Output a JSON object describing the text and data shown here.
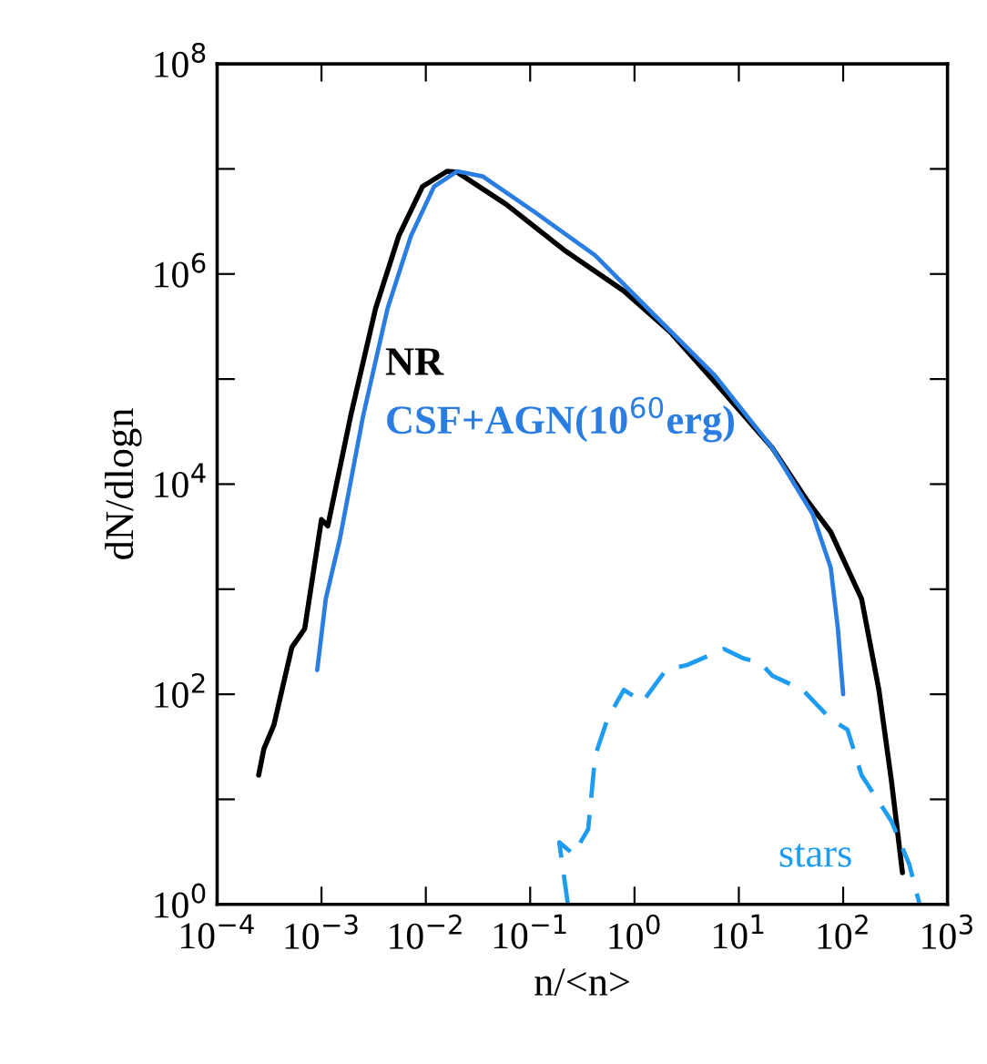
{
  "chart_data": {
    "type": "line",
    "xlabel": "n/<n>",
    "ylabel": "dN/dlogn",
    "log": "xy",
    "xlim": [
      0.0001,
      1000
    ],
    "ylim": [
      1,
      100000000
    ],
    "xticks": [
      {
        "value": 0.0001,
        "label": "10$^{−4}$"
      },
      {
        "value": 0.001,
        "label": "10$^{−3}$"
      },
      {
        "value": 0.01,
        "label": "10$^{−2}$"
      },
      {
        "value": 0.1,
        "label": "10$^{−1}$"
      },
      {
        "value": 1,
        "label": "10$^{0}$"
      },
      {
        "value": 10,
        "label": "10$^{1}$"
      },
      {
        "value": 100,
        "label": "10$^{2}$"
      },
      {
        "value": 1000,
        "label": "10$^{3}$"
      }
    ],
    "yticks": [
      {
        "value": 1,
        "label": "10$^{0}$"
      },
      {
        "value": 10,
        "label": null
      },
      {
        "value": 100,
        "label": "10$^{2}$"
      },
      {
        "value": 1000,
        "label": null
      },
      {
        "value": 10000,
        "label": "10$^{4}$"
      },
      {
        "value": 100000,
        "label": null
      },
      {
        "value": 1000000,
        "label": "10$^{6}$"
      },
      {
        "value": 10000000,
        "label": null
      },
      {
        "value": 100000000,
        "label": "10$^{8}$"
      }
    ],
    "grid": false,
    "legend": false,
    "marker": "none",
    "series": [
      {
        "name": "NR",
        "color": "#000000",
        "line_style": "solid",
        "x": [
          0.00025,
          0.00028,
          0.00035,
          0.00052,
          0.00069,
          0.001,
          0.00115,
          0.0019,
          0.0033,
          0.0055,
          0.0093,
          0.016,
          0.02,
          0.059,
          0.21,
          0.79,
          2.2,
          5.8,
          21,
          46,
          76,
          150,
          220,
          290,
          370
        ],
        "values": [
          17,
          30,
          51,
          280,
          420,
          4600,
          4000,
          44000,
          470000,
          2300000,
          6800000,
          9500000,
          9300000,
          4600000,
          1700000,
          690000,
          280000,
          95000,
          22000,
          6800,
          3500,
          810,
          110,
          15,
          2
        ]
      },
      {
        "name": "CSF+AGN(10$^{60}$erg)",
        "color": "#2a7de1",
        "line_style": "solid",
        "x": [
          0.00091,
          0.0011,
          0.0015,
          0.0025,
          0.0043,
          0.0072,
          0.012,
          0.02,
          0.035,
          0.11,
          0.42,
          1.5,
          5.8,
          21,
          51,
          76,
          89,
          100
        ],
        "values": [
          170,
          810,
          3000,
          44000,
          470000,
          2300000,
          6800000,
          9500000,
          8500000,
          3900000,
          1500000,
          420000,
          110000,
          22000,
          5200,
          1600,
          420,
          100
        ]
      },
      {
        "name": "stars",
        "color": "#1e9cf0",
        "line_style": "dashed",
        "x": [
          0.23,
          0.19,
          0.26,
          0.36,
          0.42,
          0.55,
          0.79,
          1.2,
          2,
          3.2,
          7.2,
          11,
          16,
          21,
          41,
          76,
          110,
          150,
          290,
          430,
          540
        ],
        "values": [
          1,
          3.9,
          3,
          5.2,
          26,
          58,
          110,
          85,
          170,
          190,
          270,
          220,
          200,
          150,
          110,
          58,
          46,
          17,
          6.2,
          2.4,
          1
        ]
      }
    ]
  }
}
